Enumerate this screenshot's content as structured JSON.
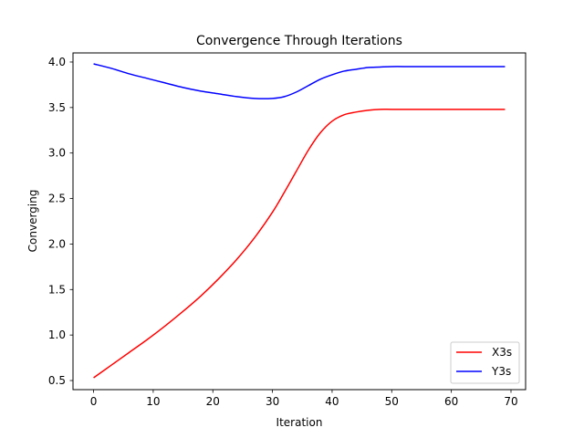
{
  "chart_data": {
    "type": "line",
    "title": "Convergence Through Iterations",
    "xlabel": "Iteration",
    "ylabel": "Converging",
    "xlim": [
      -3.45,
      72.45
    ],
    "ylim": [
      0.4,
      4.1
    ],
    "xticks": [
      0,
      10,
      20,
      30,
      40,
      50,
      60,
      70
    ],
    "yticks": [
      0.5,
      1.0,
      1.5,
      2.0,
      2.5,
      3.0,
      3.5,
      4.0
    ],
    "xtick_labels": [
      "0",
      "10",
      "20",
      "30",
      "40",
      "50",
      "60",
      "70"
    ],
    "ytick_labels": [
      "0.5",
      "1.0",
      "1.5",
      "2.0",
      "2.5",
      "3.0",
      "3.5",
      "4.0"
    ],
    "grid": false,
    "legend_position": "lower-right",
    "x": [
      0,
      3,
      6,
      9,
      12,
      15,
      18,
      21,
      24,
      27,
      30,
      32,
      34,
      36,
      38,
      40,
      42,
      44,
      46,
      48,
      50,
      53,
      56,
      60,
      65,
      69
    ],
    "series": [
      {
        "name": "X3s",
        "color": "#ff0000",
        "values": [
          0.53,
          0.67,
          0.81,
          0.95,
          1.1,
          1.26,
          1.43,
          1.62,
          1.83,
          2.07,
          2.35,
          2.57,
          2.8,
          3.03,
          3.22,
          3.35,
          3.42,
          3.45,
          3.47,
          3.48,
          3.48,
          3.48,
          3.48,
          3.48,
          3.48,
          3.48
        ]
      },
      {
        "name": "Y3s",
        "color": "#0000ff",
        "values": [
          3.98,
          3.93,
          3.87,
          3.82,
          3.77,
          3.72,
          3.68,
          3.65,
          3.62,
          3.6,
          3.6,
          3.62,
          3.67,
          3.74,
          3.81,
          3.86,
          3.9,
          3.92,
          3.94,
          3.945,
          3.95,
          3.95,
          3.95,
          3.95,
          3.95,
          3.95
        ]
      }
    ]
  }
}
